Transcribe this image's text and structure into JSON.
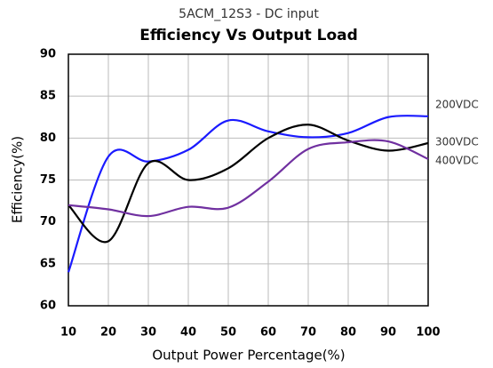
{
  "chart_data": {
    "type": "line",
    "subtitle": "5ACM_12S3 - DC input",
    "title": "Efficiency Vs Output Load",
    "x_label": "Output Power Percentage(%)",
    "y_label": "Efficiency(%)",
    "x": [
      10,
      20,
      30,
      40,
      50,
      60,
      70,
      80,
      90,
      100
    ],
    "series": [
      {
        "name": "200VDC",
        "color": "#1a1aff",
        "values": [
          64,
          77.8,
          77.2,
          78.6,
          82.1,
          80.8,
          80.1,
          80.6,
          82.5,
          82.6
        ]
      },
      {
        "name": "300VDC",
        "color": "#000000",
        "values": [
          72,
          67.7,
          77,
          75,
          76.4,
          80,
          81.6,
          79.7,
          78.5,
          79.4
        ]
      },
      {
        "name": "400VDC",
        "color": "#7030a0",
        "values": [
          72,
          71.5,
          70.7,
          71.8,
          71.7,
          74.8,
          78.7,
          79.5,
          79.6,
          77.5
        ]
      }
    ],
    "xlim": [
      10,
      100
    ],
    "xticks": [
      10,
      20,
      30,
      40,
      50,
      60,
      70,
      80,
      90,
      100
    ],
    "ylim": [
      60,
      90
    ],
    "yticks": [
      60,
      65,
      70,
      75,
      80,
      85,
      90
    ],
    "grid": true
  }
}
